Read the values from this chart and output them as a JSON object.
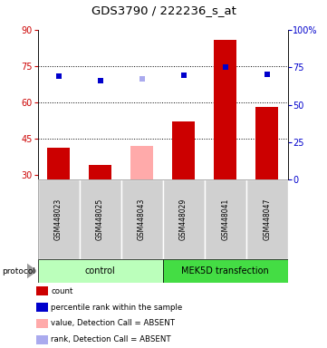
{
  "title": "GDS3790 / 222236_s_at",
  "samples": [
    "GSM448023",
    "GSM448025",
    "GSM448043",
    "GSM448029",
    "GSM448041",
    "GSM448047"
  ],
  "bar_values": [
    41.0,
    34.0,
    42.0,
    52.0,
    86.0,
    58.0
  ],
  "bar_colors": [
    "#cc0000",
    "#cc0000",
    "#ffaaaa",
    "#cc0000",
    "#cc0000",
    "#cc0000"
  ],
  "dot_values": [
    69.0,
    66.0,
    67.0,
    69.5,
    75.0,
    70.0
  ],
  "dot_colors": [
    "#0000cc",
    "#0000cc",
    "#aaaaee",
    "#0000cc",
    "#0000cc",
    "#0000cc"
  ],
  "ylim_left": [
    28,
    90
  ],
  "ylim_right": [
    0,
    100
  ],
  "yticks_left": [
    30,
    45,
    60,
    75,
    90
  ],
  "yticks_right": [
    0,
    25,
    50,
    75,
    100
  ],
  "ytick_labels_right": [
    "0",
    "25",
    "50",
    "75",
    "100%"
  ],
  "hlines": [
    45,
    60,
    75
  ],
  "groups": [
    {
      "label": "control",
      "indices": [
        0,
        1,
        2
      ],
      "color": "#bbffbb"
    },
    {
      "label": "MEK5D transfection",
      "indices": [
        3,
        4,
        5
      ],
      "color": "#44dd44"
    }
  ],
  "protocol_label": "protocol",
  "legend_items": [
    {
      "label": "count",
      "color": "#cc0000"
    },
    {
      "label": "percentile rank within the sample",
      "color": "#0000cc"
    },
    {
      "label": "value, Detection Call = ABSENT",
      "color": "#ffaaaa"
    },
    {
      "label": "rank, Detection Call = ABSENT",
      "color": "#aaaaee"
    }
  ]
}
